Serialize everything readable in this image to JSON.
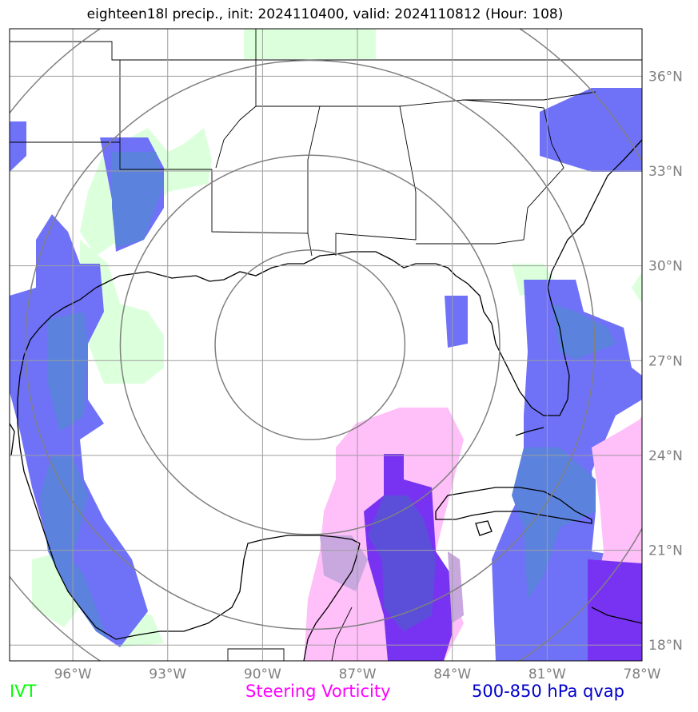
{
  "title": "eighteen18l precip., init: 2024110400, valid: 2024110812 (Hour: 108)",
  "map": {
    "lon_range": [
      -98,
      -78
    ],
    "lat_range": [
      17.5,
      37.5
    ],
    "lon_ticks": [
      {
        "value": -96,
        "label": "96°W"
      },
      {
        "value": -93,
        "label": "93°W"
      },
      {
        "value": -90,
        "label": "90°W"
      },
      {
        "value": -87,
        "label": "87°W"
      },
      {
        "value": -84,
        "label": "84°W"
      },
      {
        "value": -81,
        "label": "81°W"
      },
      {
        "value": -78,
        "label": "78°W"
      }
    ],
    "lat_ticks": [
      {
        "value": 18,
        "label": "18°N"
      },
      {
        "value": 21,
        "label": "21°N"
      },
      {
        "value": 24,
        "label": "24°N"
      },
      {
        "value": 27,
        "label": "27°N"
      },
      {
        "value": 30,
        "label": "30°N"
      },
      {
        "value": 33,
        "label": "33°N"
      },
      {
        "value": 36,
        "label": "36°N"
      }
    ],
    "range_rings": {
      "center_lon": -88.5,
      "center_lat": 27.5,
      "radii_deg": [
        3,
        6,
        9,
        12
      ]
    },
    "grid": true
  },
  "legend": {
    "ivt": {
      "label": "IVT",
      "color": "#00ff00"
    },
    "vort": {
      "label": "Steering Vorticity",
      "color": "#ff00ff"
    },
    "qvap": {
      "label": "500-850 hPa qvap",
      "color": "#0000cc"
    }
  },
  "colors": {
    "ivt_fill": "#dcffdc",
    "vort_fill": "#ffbff9",
    "vort_dark_fill": "#7833f2",
    "qvap_fill": "#6f72f7",
    "qvap_dark_fill": "#5b82dc",
    "overlap_fill": "#c9a8e0"
  }
}
